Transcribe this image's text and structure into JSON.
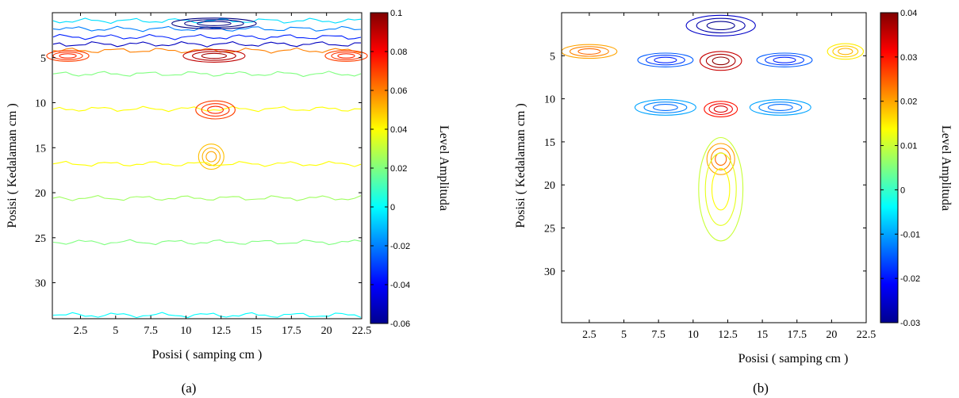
{
  "chart_data": [
    {
      "type": "contour",
      "panel_label": "(a)",
      "xlabel": "Posisi ( samping cm )",
      "ylabel": "Posisi ( Kedalaman cm )",
      "colorbar_label": "Level Amplituda",
      "xticks": [
        "2.5",
        "5",
        "7.5",
        "10",
        "12.5",
        "15",
        "17.5",
        "20",
        "22.5"
      ],
      "xtick_values": [
        2.5,
        5,
        7.5,
        10,
        12.5,
        15,
        17.5,
        20,
        22.5
      ],
      "yticks": [
        "5",
        "10",
        "15",
        "20",
        "25",
        "30"
      ],
      "ytick_values": [
        5,
        10,
        15,
        20,
        25,
        30
      ],
      "xlim": [
        0.5,
        22.5
      ],
      "ylim": [
        34,
        0
      ],
      "colorbar_ticks": [
        "0.1",
        "0.08",
        "0.06",
        "0.04",
        "0.02",
        "0",
        "-0.02",
        "-0.04",
        "-0.06"
      ],
      "colorbar_values": [
        0.1,
        0.08,
        0.06,
        0.04,
        0.02,
        0,
        -0.02,
        -0.04,
        -0.06
      ],
      "colorbar_range": [
        -0.06,
        0.1
      ],
      "colormap": "jet",
      "features": [
        {
          "kind": "band",
          "y": 0.9,
          "value": -0.005
        },
        {
          "kind": "band",
          "y": 1.8,
          "value": -0.02
        },
        {
          "kind": "band",
          "y": 2.7,
          "value": -0.035
        },
        {
          "kind": "band",
          "y": 3.5,
          "value": -0.05
        },
        {
          "kind": "blob",
          "x": 12,
          "y": 1.2,
          "rx": 3,
          "ry": 0.6,
          "value": -0.06
        },
        {
          "kind": "band",
          "y": 4.2,
          "value": 0.06
        },
        {
          "kind": "band",
          "y": 6.8,
          "value": 0.02
        },
        {
          "kind": "blob",
          "x": 12,
          "y": 4.8,
          "rx": 2.2,
          "ry": 0.7,
          "value": 0.09
        },
        {
          "kind": "blob",
          "x": 1.6,
          "y": 4.8,
          "rx": 1.5,
          "ry": 0.6,
          "value": 0.07
        },
        {
          "kind": "blob",
          "x": 21.4,
          "y": 4.8,
          "rx": 1.5,
          "ry": 0.6,
          "value": 0.07
        },
        {
          "kind": "band",
          "y": 10.7,
          "value": 0.04
        },
        {
          "kind": "blob",
          "x": 12.1,
          "y": 10.8,
          "rx": 1.4,
          "ry": 1.0,
          "value": 0.07
        },
        {
          "kind": "blob",
          "x": 11.8,
          "y": 16.0,
          "rx": 0.9,
          "ry": 1.4,
          "value": 0.05
        },
        {
          "kind": "band",
          "y": 16.8,
          "value": 0.04
        },
        {
          "kind": "band",
          "y": 20.6,
          "value": 0.025
        },
        {
          "kind": "band",
          "y": 25.5,
          "value": 0.02
        },
        {
          "kind": "band",
          "y": 33.6,
          "value": 0.0
        }
      ]
    },
    {
      "type": "contour",
      "panel_label": "(b)",
      "xlabel": "Posisi ( samping cm )",
      "ylabel": "Posisi ( Kedalaman cm )",
      "colorbar_label": "Level Amplituda",
      "xticks": [
        "2.5",
        "5",
        "7.5",
        "10",
        "12.5",
        "15",
        "17.5",
        "20",
        "22.5"
      ],
      "xtick_values": [
        2.5,
        5,
        7.5,
        10,
        12.5,
        15,
        17.5,
        20,
        22.5
      ],
      "yticks": [
        "5",
        "10",
        "15",
        "20",
        "25",
        "30"
      ],
      "ytick_values": [
        5,
        10,
        15,
        20,
        25,
        30
      ],
      "xlim": [
        0.5,
        22.5
      ],
      "ylim": [
        36,
        0
      ],
      "colorbar_ticks": [
        "0.04",
        "0.03",
        "0.02",
        "0.01",
        "0",
        "-0.01",
        "-0.02",
        "-0.03"
      ],
      "colorbar_values": [
        0.04,
        0.03,
        0.02,
        0.01,
        0,
        -0.01,
        -0.02,
        -0.03
      ],
      "colorbar_range": [
        -0.03,
        0.04
      ],
      "colormap": "jet",
      "features": [
        {
          "kind": "blob",
          "x": 12,
          "y": 1.5,
          "rx": 2.5,
          "ry": 1.2,
          "value": -0.025
        },
        {
          "kind": "blob",
          "x": 12,
          "y": 5.6,
          "rx": 1.5,
          "ry": 1.1,
          "value": 0.035
        },
        {
          "kind": "blob",
          "x": 8.0,
          "y": 5.5,
          "rx": 2.0,
          "ry": 0.8,
          "value": -0.015
        },
        {
          "kind": "blob",
          "x": 16.6,
          "y": 5.5,
          "rx": 2.0,
          "ry": 0.8,
          "value": -0.015
        },
        {
          "kind": "blob",
          "x": 2.5,
          "y": 4.5,
          "rx": 2.0,
          "ry": 0.8,
          "value": 0.02
        },
        {
          "kind": "blob",
          "x": 21.0,
          "y": 4.5,
          "rx": 1.3,
          "ry": 0.9,
          "value": 0.015
        },
        {
          "kind": "blob",
          "x": 12,
          "y": 11.2,
          "rx": 1.2,
          "ry": 0.9,
          "value": 0.03
        },
        {
          "kind": "blob",
          "x": 8.0,
          "y": 11.0,
          "rx": 2.2,
          "ry": 0.9,
          "value": -0.01
        },
        {
          "kind": "blob",
          "x": 16.3,
          "y": 11.0,
          "rx": 2.2,
          "ry": 0.9,
          "value": -0.01
        },
        {
          "kind": "blob",
          "x": 12,
          "y": 17.0,
          "rx": 1.0,
          "ry": 1.8,
          "value": 0.02
        },
        {
          "kind": "blob",
          "x": 12,
          "y": 20.5,
          "rx": 1.6,
          "ry": 6.0,
          "value": 0.01
        }
      ]
    }
  ]
}
